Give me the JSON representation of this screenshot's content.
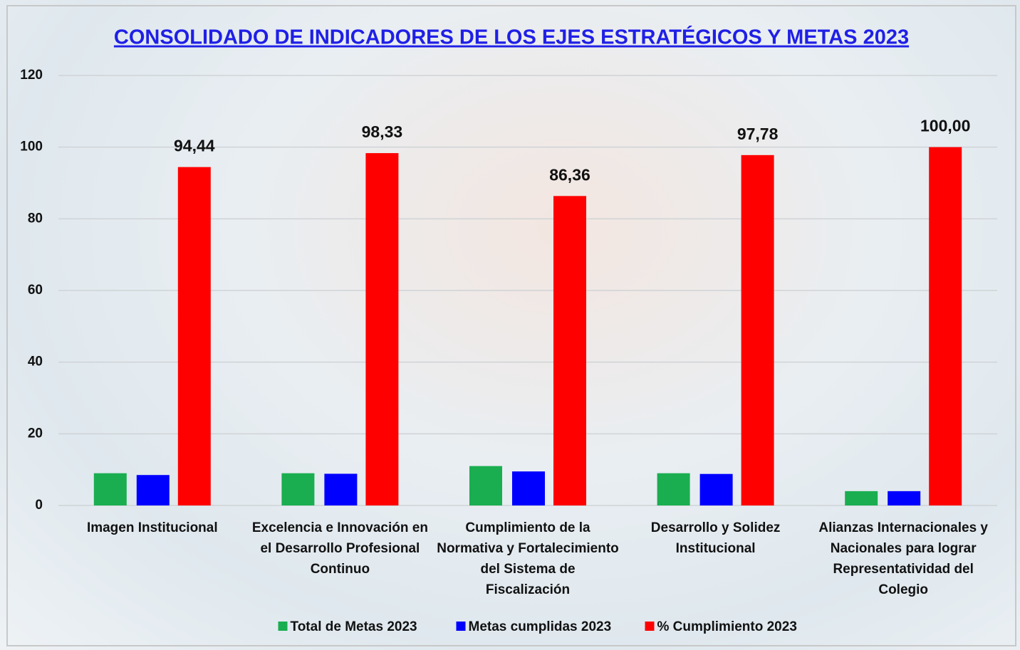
{
  "chart_data": {
    "type": "bar",
    "title": "CONSOLIDADO DE INDICADORES DE LOS EJES ESTRATÉGICOS Y METAS 2023",
    "categories": [
      "Imagen Institucional",
      "Excelencia e Innovación en el Desarrollo Profesional Continuo",
      "Cumplimiento de la Normativa y Fortalecimiento del Sistema de Fiscalización",
      "Desarrollo y Solidez Institucional",
      "Alianzas Internacionales y Nacionales para lograr Representatividad del Colegio"
    ],
    "series": [
      {
        "name": "Total de Metas 2023",
        "color": "#1aae50",
        "values": [
          9,
          9,
          11,
          9,
          4
        ]
      },
      {
        "name": "Metas cumplidas 2023",
        "color": "#0000ff",
        "values": [
          8.5,
          8.85,
          9.5,
          8.8,
          4
        ]
      },
      {
        "name": "% Cumplimiento 2023",
        "color": "#ff0000",
        "values": [
          94.44,
          98.33,
          86.36,
          97.78,
          100
        ],
        "value_labels": [
          "94,44",
          "98,33",
          "86,36",
          "97,78",
          "100,00"
        ]
      }
    ],
    "ylim": [
      0,
      120
    ],
    "yticks": [
      0,
      20,
      40,
      60,
      80,
      100,
      120
    ],
    "grid": true,
    "legend": "bottom"
  }
}
